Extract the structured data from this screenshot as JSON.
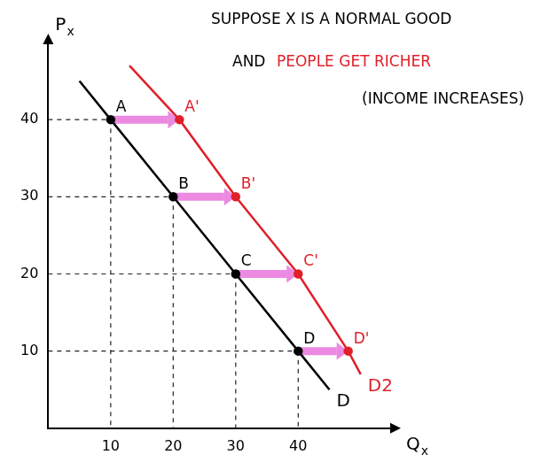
{
  "chart_data": {
    "type": "line",
    "x_label": "Qx",
    "y_label": "Px",
    "xlim": [
      0,
      55
    ],
    "ylim": [
      0,
      50
    ],
    "xticks": [
      10,
      20,
      30,
      40
    ],
    "yticks": [
      10,
      20,
      30,
      40
    ],
    "grid": false,
    "annotations": [
      {
        "text": "SUPPOSE X IS A NORMAL GOOD",
        "color": "#000000"
      },
      {
        "text": "AND",
        "color": "#000000"
      },
      {
        "text": "PEOPLE GET RICHER",
        "color": "#e0202a"
      },
      {
        "text": "(INCOME INCREASES)",
        "color": "#000000"
      }
    ],
    "series": [
      {
        "name": "D",
        "color": "#000000",
        "x": [
          5,
          10,
          20,
          30,
          40,
          45
        ],
        "values": [
          45,
          40,
          30,
          20,
          10,
          5
        ],
        "point_labels": [
          null,
          "A",
          "B",
          "C",
          "D",
          null
        ]
      },
      {
        "name": "D2",
        "color": "#e0202a",
        "x": [
          13,
          21,
          30,
          40,
          48,
          50
        ],
        "values": [
          47,
          40,
          30,
          20,
          10,
          7
        ],
        "point_labels": [
          null,
          "A'",
          "B'",
          "C'",
          "D'",
          null
        ]
      }
    ]
  }
}
